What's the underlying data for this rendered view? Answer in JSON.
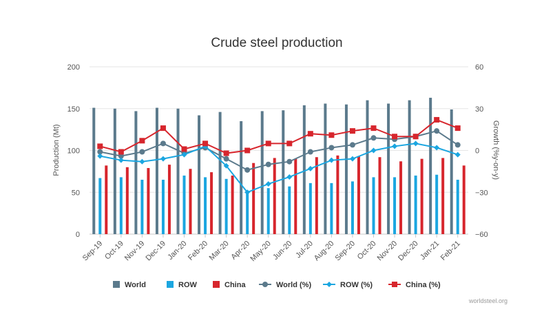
{
  "chart_data": {
    "type": "bar",
    "title": "Crude steel production",
    "ylabel": "Production (Mt)",
    "y2label": "Growth (%y-on-y)",
    "ylim": [
      0,
      200
    ],
    "y2lim": [
      -60,
      60
    ],
    "yticks": [
      "0",
      "50",
      "100",
      "150",
      "200"
    ],
    "y2ticks": [
      "−60",
      "−30",
      "0",
      "30",
      "60"
    ],
    "categories": [
      "Sep-19",
      "Oct-19",
      "Nov-19",
      "Dec-19",
      "Jan-20",
      "Feb-20",
      "Mar-20",
      "Apr-20",
      "May-20",
      "Jun-20",
      "Jul-20",
      "Aug-20",
      "Sep-20",
      "Oct-20",
      "Nov-20",
      "Dec-20",
      "Jan-21",
      "Feb-21"
    ],
    "grid": true,
    "legend_position": "bottom",
    "series": [
      {
        "name": "World",
        "kind": "bar",
        "axis": "left",
        "color": "#5b7a8c",
        "values": [
          151,
          150,
          147,
          151,
          150,
          142,
          146,
          135,
          147,
          148,
          154,
          156,
          155,
          160,
          156,
          160,
          163,
          149
        ]
      },
      {
        "name": "ROW",
        "kind": "bar",
        "axis": "left",
        "color": "#1ba6e0",
        "values": [
          67,
          68,
          65,
          65,
          70,
          68,
          66,
          52,
          55,
          57,
          61,
          61,
          63,
          68,
          68,
          70,
          71,
          65
        ]
      },
      {
        "name": "China",
        "kind": "bar",
        "axis": "left",
        "color": "#d7262d",
        "values": [
          82,
          80,
          79,
          83,
          78,
          74,
          70,
          85,
          91,
          90,
          92,
          94,
          93,
          92,
          87,
          90,
          91,
          82
        ]
      },
      {
        "name": "World (%)",
        "kind": "line",
        "axis": "right",
        "color": "#5b7a8c",
        "marker": "circle",
        "values": [
          -1,
          -4,
          -1,
          5,
          -2,
          2,
          -6,
          -14,
          -10,
          -8,
          -1,
          2,
          4,
          9,
          8,
          10,
          14,
          4
        ]
      },
      {
        "name": "ROW (%)",
        "kind": "line",
        "axis": "right",
        "color": "#1ba6e0",
        "marker": "diamond",
        "values": [
          -4,
          -7,
          -8,
          -6,
          -3,
          3,
          -11,
          -30,
          -24,
          -19,
          -13,
          -7,
          -6,
          0,
          3,
          5,
          2,
          -3
        ]
      },
      {
        "name": "China (%)",
        "kind": "line",
        "axis": "right",
        "color": "#d7262d",
        "marker": "square",
        "values": [
          3,
          -1,
          7,
          16,
          1,
          5,
          -2,
          0,
          5,
          5,
          12,
          11,
          14,
          16,
          10,
          10,
          22,
          16
        ]
      }
    ],
    "credit": "worldsteel.org"
  }
}
